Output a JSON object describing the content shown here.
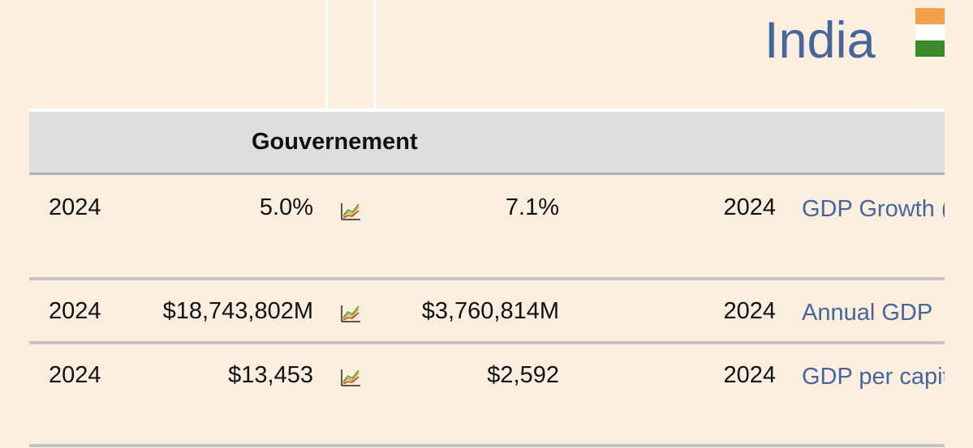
{
  "header": {
    "country": "India",
    "flag_colors": [
      "#f2a04a",
      "#ffffff",
      "#3b8a2a"
    ]
  },
  "section": {
    "title": "Gouvernement"
  },
  "rows": [
    {
      "year_left": "2024",
      "value_left": "5.0%",
      "chart_icon": "line-chart-icon",
      "value_right": "7.1%",
      "year_right": "2024",
      "indicator": "GDP Growth (%) [+]"
    },
    {
      "year_left": "2024",
      "value_left": "$18,743,802M",
      "chart_icon": "line-chart-icon",
      "value_right": "$3,760,814M",
      "year_right": "2024",
      "indicator": "Annual GDP"
    },
    {
      "year_left": "2024",
      "value_left": "$13,453",
      "chart_icon": "line-chart-icon",
      "value_right": "$2,592",
      "year_right": "2024",
      "indicator": "GDP per capita [+]"
    }
  ],
  "colors": {
    "link": "#45659c",
    "background": "#fcefe0",
    "header_bg": "#dedede"
  }
}
